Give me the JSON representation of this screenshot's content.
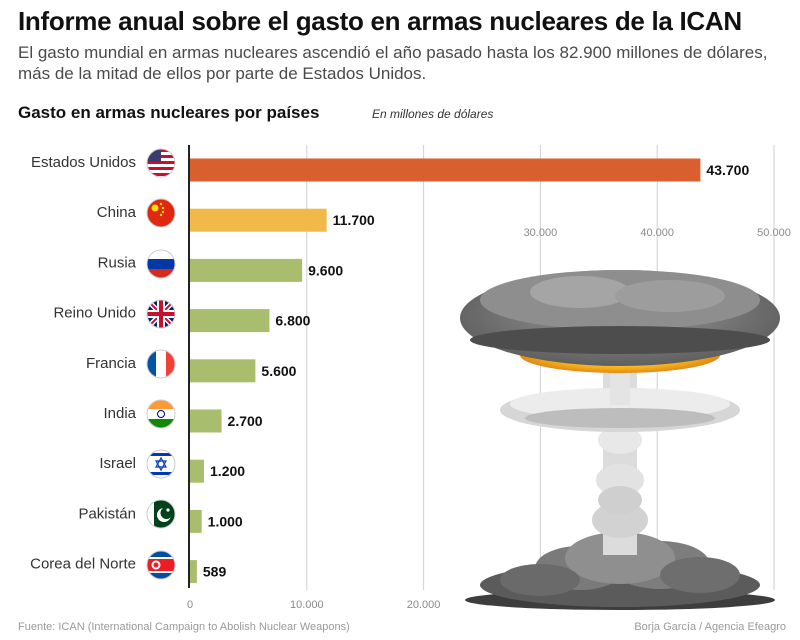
{
  "header": {
    "title": "Informe anual sobre el gasto en armas nucleares de la ICAN",
    "subtitle": "El gasto mundial en armas nucleares ascendió el año pasado hasta los 82.900 millones de dólares, más de la mitad de ellos por parte de Estados Unidos."
  },
  "chart_heading": {
    "title": "Gasto en armas nucleares por países",
    "units": "En millones de dólares"
  },
  "footer": {
    "source": "Fuente: ICAN (International Campaign to Abolish Nuclear Weapons)",
    "credit": "Borja García / Agencia Efeagro"
  },
  "colors": {
    "highlight_top": "#d95f2e",
    "highlight_second": "#f0b94a",
    "bar_default": "#a8bd6e",
    "gridline": "#cfcfcf",
    "axis": "#222222"
  },
  "chart_data": {
    "type": "bar",
    "orientation": "horizontal",
    "categories": [
      "Estados Unidos",
      "China",
      "Rusia",
      "Reino Unido",
      "Francia",
      "India",
      "Israel",
      "Pakistán",
      "Corea del Norte"
    ],
    "values": [
      43700,
      11700,
      9600,
      6800,
      5600,
      2700,
      1200,
      1000,
      589
    ],
    "value_labels": [
      "43.700",
      "11.700",
      "9.600",
      "6.800",
      "5.600",
      "2.700",
      "1.200",
      "1.000",
      "589"
    ],
    "flag_icons": [
      "usa-flag-icon",
      "china-flag-icon",
      "russia-flag-icon",
      "uk-flag-icon",
      "france-flag-icon",
      "india-flag-icon",
      "israel-flag-icon",
      "pakistan-flag-icon",
      "north-korea-flag-icon"
    ],
    "bar_colors": [
      "#d95f2e",
      "#f0b94a",
      "#a8bd6e",
      "#a8bd6e",
      "#a8bd6e",
      "#a8bd6e",
      "#a8bd6e",
      "#a8bd6e",
      "#a8bd6e"
    ],
    "xlim": [
      0,
      50000
    ],
    "ticks": [
      {
        "value": 0,
        "label": "0",
        "position": "bottom"
      },
      {
        "value": 10000,
        "label": "10.000",
        "position": "bottom"
      },
      {
        "value": 20000,
        "label": "20.000",
        "position": "bottom"
      },
      {
        "value": 30000,
        "label": "30.000",
        "position": "top"
      },
      {
        "value": 40000,
        "label": "40.000",
        "position": "top"
      },
      {
        "value": 50000,
        "label": "50.000",
        "position": "top"
      }
    ],
    "grid": true,
    "illustration": "mushroom-cloud"
  }
}
